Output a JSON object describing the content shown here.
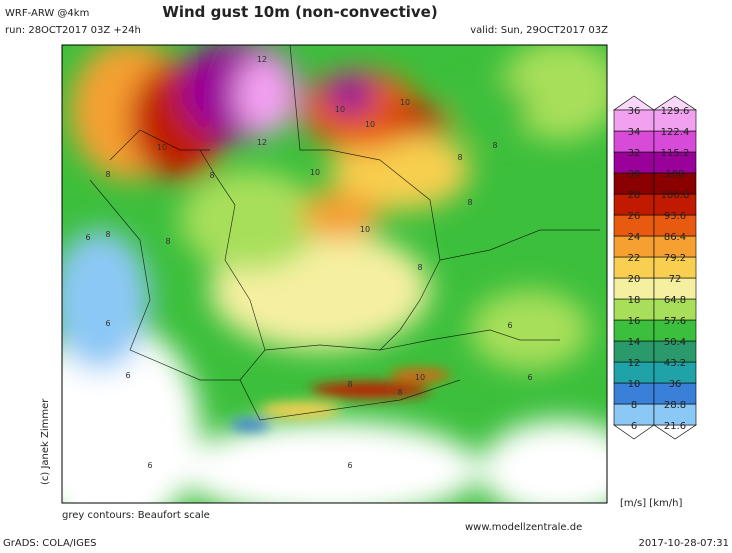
{
  "header": {
    "model": "WRF-ARW @4km",
    "title": "Wind gust 10m (non-convective)",
    "run": "run: 28OCT2017 03Z +24h",
    "valid": "valid: Sun, 29OCT2017 03Z"
  },
  "colorbar": {
    "ms": [
      "6",
      "8",
      "10",
      "12",
      "14",
      "16",
      "18",
      "20",
      "22",
      "24",
      "26",
      "28",
      "30",
      "32",
      "34",
      "36"
    ],
    "kmh": [
      "21.6",
      "28.8",
      "36",
      "43.2",
      "50.4",
      "57.6",
      "64.8",
      "72",
      "79.2",
      "86.4",
      "93.6",
      "100.8",
      "108",
      "115.2",
      "122.4",
      "129.6"
    ],
    "colors": [
      "#ffffff",
      "#8cc8f5",
      "#3a7fd8",
      "#1fa3a8",
      "#2a9a6a",
      "#3cbf3c",
      "#a8df5a",
      "#f5f0a0",
      "#f8cf50",
      "#f5a030",
      "#e85a10",
      "#c01a00",
      "#8a0000",
      "#9a009a",
      "#d84ad8",
      "#f2a0f0",
      "#fbd8fb"
    ],
    "units": "[m/s] [km/h]"
  },
  "contour_labels": [
    "12",
    "12",
    "10",
    "10",
    "10",
    "10",
    "10",
    "10",
    "8",
    "8",
    "8",
    "8",
    "8",
    "8",
    "8",
    "8",
    "6",
    "6",
    "6",
    "6",
    "6",
    "6",
    "8",
    "10",
    "8",
    "6"
  ],
  "footer": {
    "note": "grey contours: Beaufort scale",
    "site": "www.modellzentrale.de",
    "software": "GrADS: COLA/IGES",
    "timestamp": "2017-10-28-07:31",
    "copyright": "(c) Janek Zimmer"
  }
}
